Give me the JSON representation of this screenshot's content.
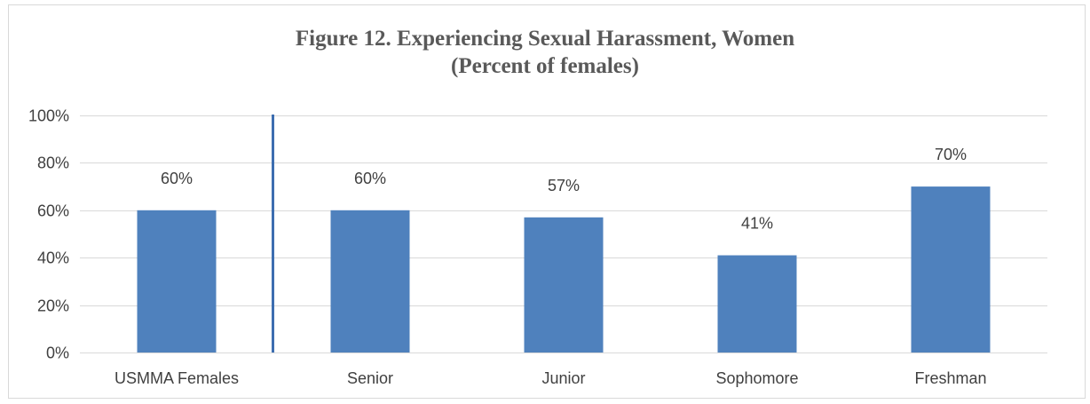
{
  "chart_data": {
    "type": "bar",
    "title": "Figure 12. Experiencing Sexual Harassment, Women",
    "subtitle": "(Percent of females)",
    "categories": [
      "USMMA Females",
      "Senior",
      "Junior",
      "Sophomore",
      "Freshman"
    ],
    "values": [
      60,
      60,
      57,
      41,
      70
    ],
    "data_labels": [
      "60%",
      "60%",
      "57%",
      "41%",
      "70%"
    ],
    "ylim": [
      0,
      100
    ],
    "yticks": [
      0,
      20,
      40,
      60,
      80,
      100
    ],
    "ytick_labels": [
      "0%",
      "20%",
      "40%",
      "60%",
      "80%",
      "100%"
    ],
    "xlabel": "",
    "ylabel": "",
    "grid": true,
    "legend": "none",
    "separator_after_category": "USMMA Females",
    "colors": {
      "bar": "#4f81bd",
      "separator": "#3d6eb0",
      "grid": "#d9d9d9",
      "text": "#404040",
      "title": "#595959"
    }
  }
}
